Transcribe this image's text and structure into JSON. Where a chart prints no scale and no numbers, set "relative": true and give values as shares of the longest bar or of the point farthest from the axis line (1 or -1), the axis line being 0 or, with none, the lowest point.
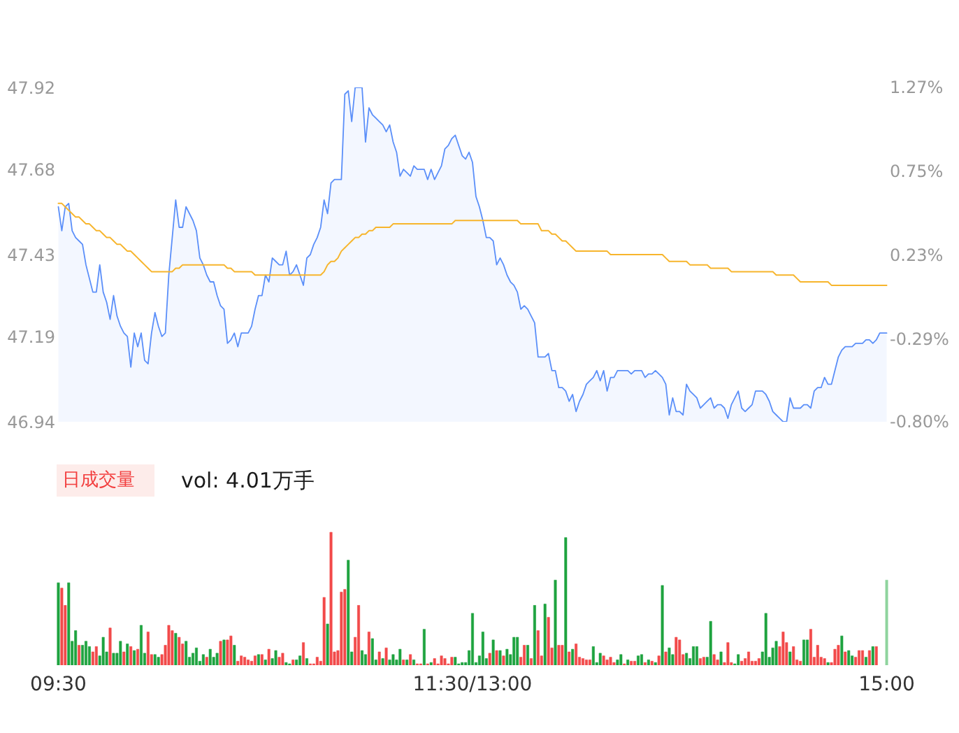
{
  "chart_data": [
    {
      "type": "line",
      "ylim": [
        46.94,
        47.92
      ],
      "yticks": [
        46.94,
        47.19,
        47.43,
        47.68,
        47.92
      ],
      "y2lim": [
        -0.8,
        1.27
      ],
      "y2ticks": [
        {
          "value": -0.8,
          "label": "-0.80%"
        },
        {
          "value": -0.29,
          "label": "-0.29%"
        },
        {
          "value": 0.23,
          "label": "0.23%"
        },
        {
          "value": 0.75,
          "label": "0.75%"
        },
        {
          "value": 1.27,
          "label": "1.27%"
        }
      ],
      "tick_labels": "y",
      "categories": [
        null,
        null,
        null,
        null,
        null,
        null,
        null,
        null,
        null,
        null,
        null,
        null,
        null,
        null,
        null,
        null,
        null,
        null,
        null,
        null,
        null,
        null,
        null,
        null,
        null,
        null,
        null,
        null,
        null,
        null,
        null,
        null,
        null,
        null,
        null,
        null,
        null,
        null,
        null,
        null,
        null,
        null,
        null,
        null,
        null,
        null,
        null,
        null,
        null,
        null,
        null,
        null,
        null,
        null,
        null,
        null,
        null,
        null,
        null,
        null,
        null,
        null,
        null,
        null,
        null,
        null,
        null,
        null,
        null,
        null,
        null,
        null,
        null,
        null,
        null,
        null,
        null,
        null,
        null,
        null,
        null,
        null,
        null,
        null,
        null,
        null,
        null,
        null,
        null,
        null,
        null,
        null,
        null,
        null,
        null,
        null,
        null,
        null,
        null,
        null,
        null,
        null,
        null,
        null,
        null,
        null,
        null,
        null,
        null,
        null,
        null,
        null,
        null,
        null,
        null,
        null,
        null,
        null,
        null,
        null,
        null,
        null,
        null,
        null,
        null,
        null,
        null,
        null,
        null,
        null,
        null,
        null,
        null,
        null,
        null,
        null,
        null,
        null,
        null,
        null,
        null,
        null,
        null,
        null,
        null,
        null,
        null,
        null,
        null,
        null,
        null,
        null,
        null,
        null,
        null,
        null,
        null,
        null,
        null,
        null,
        null,
        null,
        null,
        null,
        null,
        null,
        null,
        null,
        null,
        null,
        null,
        null,
        null,
        null,
        null,
        null,
        null,
        null,
        null,
        null,
        null,
        null,
        null,
        null,
        null,
        null,
        null,
        null,
        null,
        null,
        null,
        null,
        null,
        null,
        null,
        null,
        null,
        null,
        null,
        null,
        null,
        null,
        null,
        null,
        null,
        null,
        null,
        null,
        null,
        null,
        null,
        null,
        null,
        null,
        null,
        null,
        null,
        null,
        null,
        null,
        null,
        null,
        null,
        null,
        null,
        null,
        null,
        null,
        null,
        null,
        null,
        null,
        null,
        null,
        null,
        null,
        null,
        null,
        null,
        null,
        null
      ],
      "series": [
        {
          "type": "area",
          "color": "#5b8ff9",
          "values": [
            47.57,
            47.5,
            47.57,
            47.58,
            47.5,
            47.48,
            47.47,
            47.46,
            47.4,
            47.36,
            47.32,
            47.32,
            47.4,
            47.32,
            47.29,
            47.24,
            47.31,
            47.25,
            47.22,
            47.2,
            47.19,
            47.1,
            47.2,
            47.16,
            47.2,
            47.12,
            47.11,
            47.2,
            47.26,
            47.22,
            47.19,
            47.2,
            47.37,
            47.48,
            47.59,
            47.51,
            47.51,
            47.57,
            47.55,
            47.53,
            47.5,
            47.42,
            47.4,
            47.37,
            47.35,
            47.35,
            47.31,
            47.28,
            47.27,
            47.17,
            47.18,
            47.2,
            47.16,
            47.2,
            47.2,
            47.2,
            47.22,
            47.27,
            47.31,
            47.31,
            47.37,
            47.35,
            47.42,
            47.41,
            47.4,
            47.4,
            47.44,
            47.37,
            47.38,
            47.4,
            47.37,
            47.34,
            47.42,
            47.43,
            47.46,
            47.48,
            47.51,
            47.59,
            47.55,
            47.64,
            47.65,
            47.65,
            47.65,
            47.9,
            47.91,
            47.82,
            47.92,
            47.92,
            47.92,
            47.76,
            47.86,
            47.84,
            47.83,
            47.82,
            47.81,
            47.79,
            47.81,
            47.76,
            47.73,
            47.66,
            47.68,
            47.67,
            47.66,
            47.69,
            47.68,
            47.68,
            47.68,
            47.65,
            47.68,
            47.65,
            47.67,
            47.69,
            47.74,
            47.75,
            47.77,
            47.78,
            47.75,
            47.72,
            47.71,
            47.73,
            47.7,
            47.6,
            47.57,
            47.53,
            47.48,
            47.48,
            47.47,
            47.4,
            47.42,
            47.4,
            47.37,
            47.35,
            47.34,
            47.32,
            47.27,
            47.28,
            47.27,
            47.25,
            47.23,
            47.13,
            47.13,
            47.13,
            47.14,
            47.09,
            47.09,
            47.04,
            47.04,
            47.03,
            47.0,
            47.02,
            46.97,
            47.0,
            47.02,
            47.05,
            47.06,
            47.07,
            47.09,
            47.06,
            47.09,
            47.03,
            47.07,
            47.07,
            47.09,
            47.09,
            47.09,
            47.09,
            47.08,
            47.09,
            47.09,
            47.09,
            47.07,
            47.08,
            47.08,
            47.09,
            47.08,
            47.07,
            47.05,
            46.96,
            47.01,
            46.97,
            46.97,
            46.96,
            47.05,
            47.03,
            47.02,
            47.01,
            46.98,
            46.99,
            47.0,
            47.01,
            46.98,
            46.99,
            46.99,
            46.98,
            46.95,
            46.99,
            47.01,
            47.03,
            46.98,
            46.97,
            46.98,
            46.99,
            47.03,
            47.03,
            47.03,
            47.02,
            47.0,
            46.97,
            46.96,
            46.95,
            46.94,
            46.94,
            47.01,
            46.98,
            46.98,
            46.98,
            46.99,
            46.99,
            46.98,
            47.03,
            47.04,
            47.04,
            47.07,
            47.05,
            47.05,
            47.09,
            47.13,
            47.15,
            47.16,
            47.16,
            47.16,
            47.17,
            47.17,
            47.17,
            47.18,
            47.18,
            47.17,
            47.18,
            47.2,
            47.2,
            47.2
          ]
        },
        {
          "type": "line",
          "color": "#f7b52c",
          "values": [
            47.58,
            47.58,
            47.57,
            47.56,
            47.55,
            47.54,
            47.54,
            47.53,
            47.52,
            47.52,
            47.51,
            47.5,
            47.5,
            47.49,
            47.48,
            47.48,
            47.47,
            47.46,
            47.46,
            47.45,
            47.44,
            47.44,
            47.43,
            47.42,
            47.41,
            47.4,
            47.39,
            47.38,
            47.38,
            47.38,
            47.38,
            47.38,
            47.38,
            47.38,
            47.39,
            47.39,
            47.4,
            47.4,
            47.4,
            47.4,
            47.4,
            47.4,
            47.4,
            47.4,
            47.4,
            47.4,
            47.4,
            47.4,
            47.4,
            47.39,
            47.39,
            47.38,
            47.38,
            47.38,
            47.38,
            47.38,
            47.38,
            47.37,
            47.37,
            47.37,
            47.37,
            47.37,
            47.37,
            47.37,
            47.37,
            47.37,
            47.37,
            47.37,
            47.37,
            47.37,
            47.37,
            47.37,
            47.37,
            47.37,
            47.37,
            47.37,
            47.37,
            47.38,
            47.4,
            47.41,
            47.41,
            47.42,
            47.44,
            47.45,
            47.46,
            47.47,
            47.48,
            47.48,
            47.49,
            47.49,
            47.5,
            47.5,
            47.51,
            47.51,
            47.51,
            47.51,
            47.51,
            47.52,
            47.52,
            47.52,
            47.52,
            47.52,
            47.52,
            47.52,
            47.52,
            47.52,
            47.52,
            47.52,
            47.52,
            47.52,
            47.52,
            47.52,
            47.52,
            47.52,
            47.52,
            47.53,
            47.53,
            47.53,
            47.53,
            47.53,
            47.53,
            47.53,
            47.53,
            47.53,
            47.53,
            47.53,
            47.53,
            47.53,
            47.53,
            47.53,
            47.53,
            47.53,
            47.53,
            47.53,
            47.52,
            47.52,
            47.52,
            47.52,
            47.52,
            47.52,
            47.5,
            47.5,
            47.5,
            47.49,
            47.49,
            47.48,
            47.47,
            47.47,
            47.46,
            47.45,
            47.44,
            47.44,
            47.44,
            47.44,
            47.44,
            47.44,
            47.44,
            47.44,
            47.44,
            47.44,
            47.43,
            47.43,
            47.43,
            47.43,
            47.43,
            47.43,
            47.43,
            47.43,
            47.43,
            47.43,
            47.43,
            47.43,
            47.43,
            47.43,
            47.43,
            47.43,
            47.42,
            47.41,
            47.41,
            47.41,
            47.41,
            47.41,
            47.41,
            47.4,
            47.4,
            47.4,
            47.4,
            47.4,
            47.4,
            47.39,
            47.39,
            47.39,
            47.39,
            47.39,
            47.39,
            47.38,
            47.38,
            47.38,
            47.38,
            47.38,
            47.38,
            47.38,
            47.38,
            47.38,
            47.38,
            47.38,
            47.38,
            47.38,
            47.37,
            47.37,
            47.37,
            47.37,
            47.37,
            47.37,
            47.36,
            47.35,
            47.35,
            47.35,
            47.35,
            47.35,
            47.35,
            47.35,
            47.35,
            47.35,
            47.34,
            47.34,
            47.34,
            47.34,
            47.34,
            47.34,
            47.34,
            47.34,
            47.34,
            47.34,
            47.34,
            47.34,
            47.34,
            47.34,
            47.34,
            47.34,
            47.34
          ]
        }
      ]
    },
    {
      "type": "bar",
      "title": "日成交量",
      "subtitle": "vol: 4.01万手",
      "relative": true,
      "categories": [
        "09:30",
        null,
        null,
        null,
        null,
        null,
        null,
        null,
        null,
        null,
        null,
        null,
        null,
        null,
        null,
        null,
        null,
        null,
        null,
        null,
        null,
        null,
        null,
        null,
        null,
        null,
        null,
        null,
        null,
        null,
        null,
        null,
        null,
        null,
        null,
        null,
        null,
        null,
        null,
        null,
        null,
        null,
        null,
        null,
        null,
        null,
        null,
        null,
        null,
        null,
        null,
        null,
        null,
        null,
        null,
        null,
        null,
        null,
        null,
        null,
        null,
        null,
        null,
        null,
        null,
        null,
        null,
        null,
        null,
        null,
        null,
        null,
        null,
        null,
        null,
        null,
        null,
        null,
        null,
        null,
        null,
        null,
        null,
        null,
        null,
        null,
        null,
        null,
        null,
        null,
        null,
        null,
        null,
        null,
        null,
        null,
        null,
        null,
        null,
        null,
        null,
        null,
        null,
        null,
        null,
        null,
        null,
        null,
        null,
        null,
        null,
        null,
        null,
        null,
        null,
        null,
        null,
        null,
        null,
        null,
        "11:30/13:00",
        null,
        null,
        null,
        null,
        null,
        null,
        null,
        null,
        null,
        null,
        null,
        null,
        null,
        null,
        null,
        null,
        null,
        null,
        null,
        null,
        null,
        null,
        null,
        null,
        null,
        null,
        null,
        null,
        null,
        null,
        null,
        null,
        null,
        null,
        null,
        null,
        null,
        null,
        null,
        null,
        null,
        null,
        null,
        null,
        null,
        null,
        null,
        null,
        null,
        null,
        null,
        null,
        null,
        null,
        null,
        null,
        null,
        null,
        null,
        null,
        null,
        null,
        null,
        null,
        null,
        null,
        null,
        null,
        null,
        null,
        null,
        null,
        null,
        null,
        null,
        null,
        null,
        null,
        null,
        null,
        null,
        null,
        null,
        null,
        null,
        null,
        null,
        null,
        null,
        null,
        null,
        null,
        null,
        null,
        null,
        null,
        null,
        null,
        null,
        null,
        null,
        null,
        null,
        null,
        null,
        null,
        null,
        null,
        null,
        null,
        null,
        null,
        null,
        null,
        null,
        null,
        null,
        null,
        null,
        "15:00"
      ],
      "values": [
        0.62,
        0.58,
        0.45,
        0.62,
        0.18,
        0.26,
        0.15,
        0.15,
        0.18,
        0.14,
        0.1,
        0.14,
        0.07,
        0.21,
        0.1,
        0.28,
        0.09,
        0.09,
        0.18,
        0.1,
        0.16,
        0.14,
        0.11,
        0.12,
        0.3,
        0.09,
        0.25,
        0.08,
        0.08,
        0.06,
        0.08,
        0.15,
        0.3,
        0.26,
        0.24,
        0.21,
        0.16,
        0.18,
        0.06,
        0.09,
        0.13,
        0.03,
        0.08,
        0.06,
        0.12,
        0.06,
        0.09,
        0.18,
        0.19,
        0.19,
        0.22,
        0.15,
        0.03,
        0.07,
        0.06,
        0.04,
        0.03,
        0.07,
        0.08,
        0.08,
        0.04,
        0.12,
        0.05,
        0.11,
        0.06,
        0.09,
        0.02,
        0.01,
        0.04,
        0.04,
        0.07,
        0.17,
        0.05,
        0.01,
        0.01,
        0.06,
        0.03,
        0.51,
        0.31,
        1,
        0.1,
        0.11,
        0.55,
        0.57,
        0.79,
        0.1,
        0.21,
        0.45,
        0.11,
        0.08,
        0.25,
        0.2,
        0.04,
        0.1,
        0.05,
        0.13,
        0.04,
        0.08,
        0.04,
        0.12,
        0.04,
        0.04,
        0.08,
        0.04,
        0.01,
        0.01,
        0.27,
        0.01,
        0.02,
        0.05,
        0.01,
        0.07,
        0.05,
        0.01,
        0.06,
        0.06,
        0.01,
        0.02,
        0.02,
        0.11,
        0.39,
        0.02,
        0.07,
        0.25,
        0.05,
        0.09,
        0.19,
        0.11,
        0.11,
        0.07,
        0.12,
        0.08,
        0.21,
        0.21,
        0.06,
        0.15,
        0.15,
        0.05,
        0.45,
        0.26,
        0.07,
        0.46,
        0.36,
        0.13,
        0.64,
        0.15,
        0.15,
        0.96,
        0.1,
        0.12,
        0.16,
        0.06,
        0.05,
        0.04,
        0.04,
        0.14,
        0.02,
        0.09,
        0.07,
        0.04,
        0.06,
        0.02,
        0.04,
        0.08,
        0.01,
        0.04,
        0.03,
        0.03,
        0.07,
        0.08,
        0.02,
        0.04,
        0.03,
        0.02,
        0.07,
        0.6,
        0.1,
        0.13,
        0.08,
        0.21,
        0.19,
        0.08,
        0.09,
        0.05,
        0.14,
        0.14,
        0.05,
        0.06,
        0.06,
        0.33,
        0.08,
        0.04,
        0.1,
        0.02,
        0.17,
        0.02,
        0.01,
        0.08,
        0.03,
        0.05,
        0.1,
        0.03,
        0.03,
        0.05,
        0.1,
        0.39,
        0.06,
        0.13,
        0.18,
        0.14,
        0.25,
        0.17,
        0.1,
        0.14,
        0.04,
        0.03,
        0.19,
        0.19,
        0.27,
        0.06,
        0.15,
        0.06,
        0.05,
        0.02,
        0.02,
        0.12,
        0.15,
        0.22,
        0.1,
        0.11,
        0.07,
        0.06,
        0.11,
        0.11,
        0.06,
        0.11,
        0.14,
        0.14,
        null,
        null,
        0.64
      ],
      "colors": [
        "#1ea33f",
        "#f24a4a",
        "#f24a4a",
        "#1ea33f",
        "#1ea33f",
        "#1ea33f",
        "#f24a4a",
        "#1ea33f",
        "#1ea33f",
        "#1ea33f",
        "#f24a4a",
        "#f24a4a",
        "#1ea33f",
        "#1ea33f",
        "#1ea33f",
        "#f24a4a",
        "#1ea33f",
        "#1ea33f",
        "#1ea33f",
        "#f24a4a",
        "#1ea33f",
        "#f24a4a",
        "#1ea33f",
        "#f24a4a",
        "#1ea33f",
        "#1ea33f",
        "#f24a4a",
        "#f24a4a",
        "#1ea33f",
        "#1ea33f",
        "#f24a4a",
        "#f24a4a",
        "#f24a4a",
        "#f24a4a",
        "#1ea33f",
        "#f24a4a",
        "#f24a4a",
        "#1ea33f",
        "#1ea33f",
        "#1ea33f",
        "#1ea33f",
        "#1ea33f",
        "#1ea33f",
        "#f24a4a",
        "#1ea33f",
        "#1ea33f",
        "#1ea33f",
        "#f24a4a",
        "#1ea33f",
        "#f24a4a",
        "#f24a4a",
        "#1ea33f",
        "#f24a4a",
        "#f24a4a",
        "#f24a4a",
        "#f24a4a",
        "#f24a4a",
        "#f24a4a",
        "#1ea33f",
        "#f24a4a",
        "#1ea33f",
        "#f24a4a",
        "#1ea33f",
        "#1ea33f",
        "#f24a4a",
        "#f24a4a",
        "#1ea33f",
        "#1ea33f",
        "#f24a4a",
        "#1ea33f",
        "#1ea33f",
        "#f24a4a",
        "#1ea33f",
        "#f24a4a",
        "#f24a4a",
        "#f24a4a",
        "#f24a4a",
        "#f24a4a",
        "#1ea33f",
        "#f24a4a",
        "#f24a4a",
        "#f24a4a",
        "#f24a4a",
        "#f24a4a",
        "#1ea33f",
        "#1ea33f",
        "#f24a4a",
        "#f24a4a",
        "#1ea33f",
        "#1ea33f",
        "#f24a4a",
        "#1ea33f",
        "#1ea33f",
        "#f24a4a",
        "#1ea33f",
        "#f24a4a",
        "#1ea33f",
        "#1ea33f",
        "#1ea33f",
        "#1ea33f",
        "#f24a4a",
        "#1ea33f",
        "#f24a4a",
        "#1ea33f",
        "#f24a4a",
        "#f24a4a",
        "#1ea33f",
        "#f24a4a",
        "#1ea33f",
        "#f24a4a",
        "#f24a4a",
        "#f24a4a",
        "#f24a4a",
        "#f24a4a",
        "#f24a4a",
        "#1ea33f",
        "#1ea33f",
        "#1ea33f",
        "#1ea33f",
        "#1ea33f",
        "#1ea33f",
        "#1ea33f",
        "#1ea33f",
        "#1ea33f",
        "#1ea33f",
        "#f24a4a",
        "#1ea33f",
        "#f24a4a",
        "#1ea33f",
        "#f24a4a",
        "#1ea33f",
        "#1ea33f",
        "#1ea33f",
        "#1ea33f",
        "#f24a4a",
        "#f24a4a",
        "#1ea33f",
        "#f24a4a",
        "#1ea33f",
        "#f24a4a",
        "#f24a4a",
        "#1ea33f",
        "#f24a4a",
        "#f24a4a",
        "#1ea33f",
        "#f24a4a",
        "#f24a4a",
        "#1ea33f",
        "#f24a4a",
        "#1ea33f",
        "#f24a4a",
        "#f24a4a",
        "#f24a4a",
        "#f24a4a",
        "#f24a4a",
        "#1ea33f",
        "#1ea33f",
        "#1ea33f",
        "#f24a4a",
        "#f24a4a",
        "#f24a4a",
        "#f24a4a",
        "#1ea33f",
        "#1ea33f",
        "#f24a4a",
        "#1ea33f",
        "#f24a4a",
        "#f24a4a",
        "#1ea33f",
        "#1ea33f",
        "#f24a4a",
        "#1ea33f",
        "#f24a4a",
        "#1ea33f",
        "#f24a4a",
        "#1ea33f",
        "#f24a4a",
        "#1ea33f",
        "#1ea33f",
        "#f24a4a",
        "#f24a4a",
        "#f24a4a",
        "#1ea33f",
        "#1ea33f",
        "#1ea33f",
        "#1ea33f",
        "#f24a4a",
        "#f24a4a",
        "#1ea33f",
        "#1ea33f",
        "#f24a4a",
        "#f24a4a",
        "#1ea33f",
        "#f24a4a",
        "#f24a4a",
        "#f24a4a",
        "#1ea33f",
        "#1ea33f",
        "#f24a4a",
        "#f24a4a",
        "#f24a4a",
        "#f24a4a",
        "#f24a4a",
        "#f24a4a",
        "#1ea33f",
        "#1ea33f",
        "#1ea33f",
        "#1ea33f",
        "#1ea33f",
        "#f24a4a",
        "#f24a4a",
        "#f24a4a",
        "#1ea33f",
        "#f24a4a",
        "#f24a4a",
        "#f24a4a",
        "#1ea33f",
        "#1ea33f",
        "#f24a4a",
        "#f24a4a",
        "#f24a4a",
        "#f24a4a",
        "#f24a4a",
        "#1ea33f",
        "#f24a4a",
        "#f24a4a",
        "#f24a4a",
        "#1ea33f",
        "#f24a4a",
        "#1ea33f",
        "#1ea33f",
        "#f24a4a",
        "#f24a4a",
        "#f24a4a",
        "#1ea33f",
        "#f24a4a",
        "#1ea33f",
        "#f24a4a",
        null,
        null,
        "#8fd49e"
      ]
    }
  ]
}
